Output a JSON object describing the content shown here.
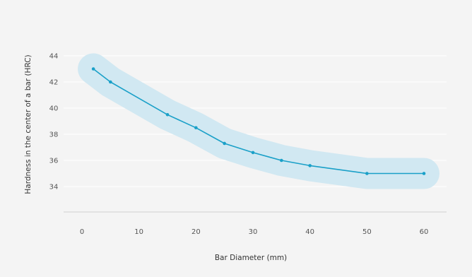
{
  "chart_data": {
    "type": "line",
    "title": "",
    "xlabel": "Bar Diameter (mm)",
    "ylabel": "Hardness in the center of a bar (HRC)",
    "xlim": [
      -4,
      64
    ],
    "ylim": [
      32,
      44
    ],
    "x_ticks": [
      "0",
      "10",
      "20",
      "30",
      "40",
      "50",
      "60"
    ],
    "y_ticks": [
      "34",
      "36",
      "38",
      "40",
      "42",
      "44"
    ],
    "grid": true,
    "series": [
      {
        "x": [
          2,
          5,
          15,
          20,
          25,
          30,
          35,
          40,
          50,
          60
        ],
        "y": [
          43.0,
          42.0,
          39.5,
          38.5,
          37.3,
          36.6,
          36.0,
          35.6,
          35.0,
          35.0
        ],
        "band": "light-blue confidence band around line"
      }
    ],
    "colors": {
      "line": "#1aa0c8",
      "band": "#cfe7f1",
      "grid": "#ffffff",
      "axis": "#d0d0d0",
      "background": "#f4f4f4"
    }
  }
}
